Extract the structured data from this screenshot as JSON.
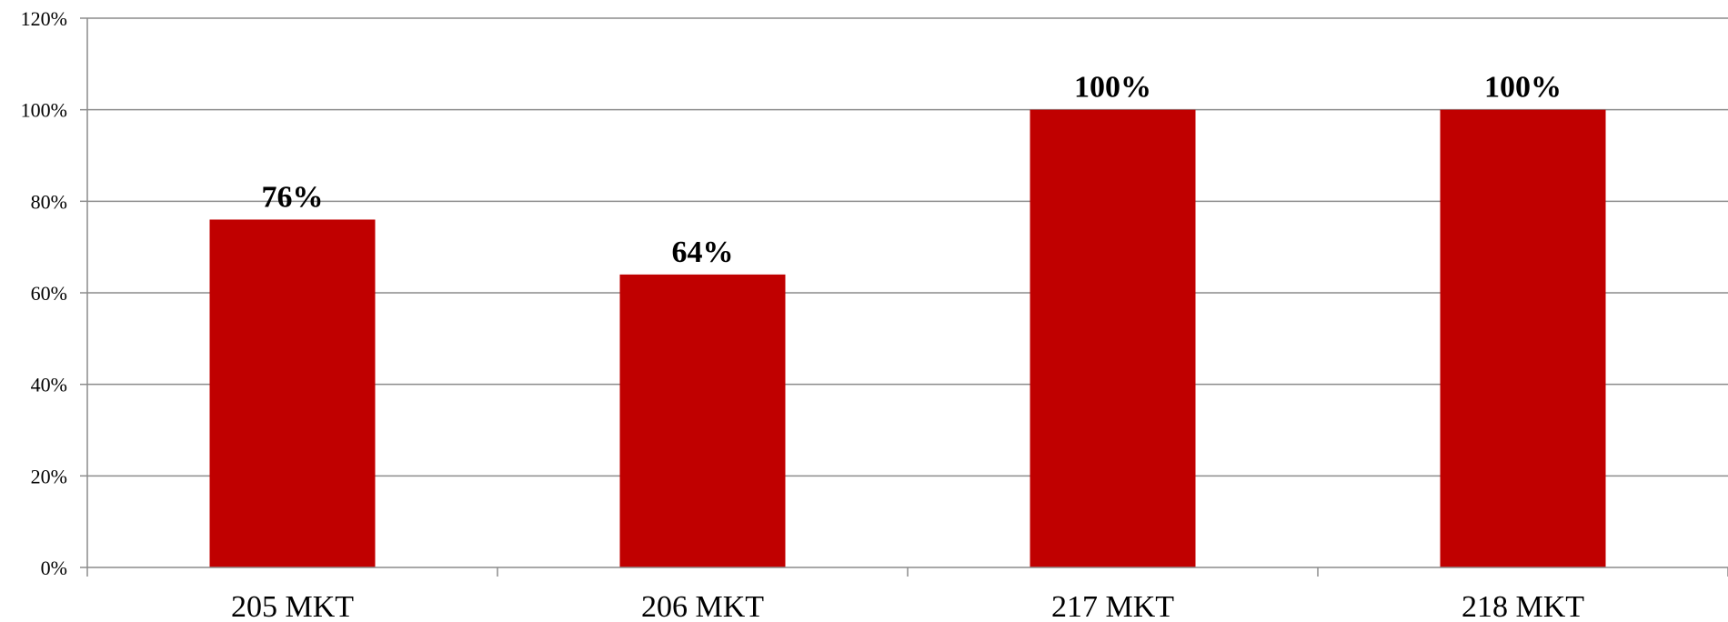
{
  "chart_data": {
    "type": "bar",
    "title": "",
    "xlabel": "",
    "ylabel": "",
    "categories": [
      "205 MKT",
      "206 MKT",
      "217 MKT",
      "218 MKT"
    ],
    "values": [
      76,
      64,
      100,
      100
    ],
    "data_labels": [
      "76%",
      "64%",
      "100%",
      "100%"
    ],
    "ylim": [
      0,
      120
    ],
    "yticks": [
      0,
      20,
      40,
      60,
      80,
      100,
      120
    ],
    "ytick_labels": [
      "0%",
      "20%",
      "40%",
      "60%",
      "80%",
      "100%",
      "120%"
    ],
    "grid": true,
    "legend": "none",
    "colors": {
      "bar": "#c00000",
      "grid": "#8c8c8c",
      "axis": "#8c8c8c"
    }
  }
}
